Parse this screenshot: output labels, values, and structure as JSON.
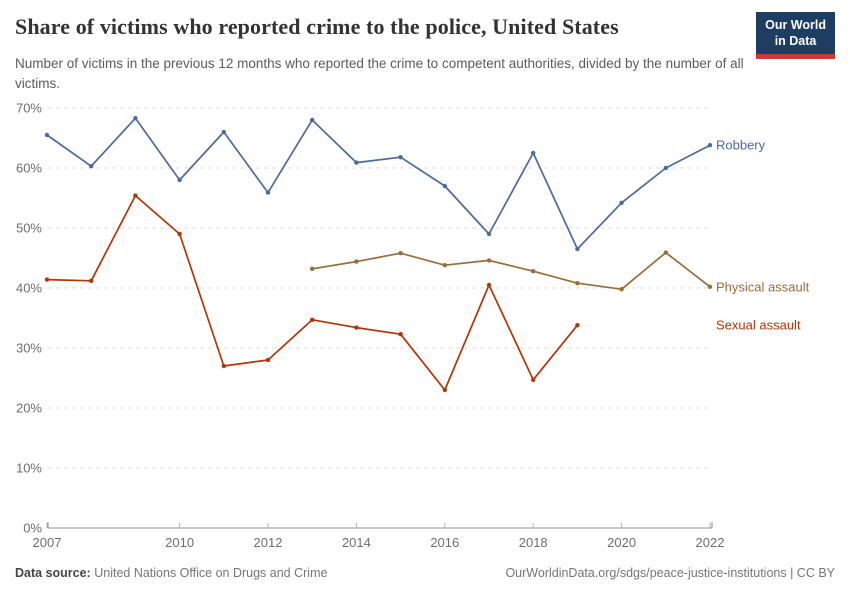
{
  "header": {
    "title": "Share of victims who reported crime to the police, United States",
    "subtitle": "Number of victims in the previous 12 months who reported the crime to competent authorities, divided by the number of all victims.",
    "logo": {
      "line1": "Our World",
      "line2": "in Data",
      "bg_color": "#1d3d63",
      "accent_color": "#cc3b33"
    }
  },
  "chart_data": {
    "type": "line",
    "title": "Share of victims who reported crime to the police, United States",
    "xlabel": "",
    "ylabel": "",
    "ylim": [
      0,
      70
    ],
    "xlim": [
      2007,
      2022
    ],
    "yticks": [
      0,
      10,
      20,
      30,
      40,
      50,
      60,
      70
    ],
    "ytick_suffix": "%",
    "xticks": [
      2007,
      2010,
      2012,
      2014,
      2016,
      2018,
      2020,
      2022
    ],
    "grid": true,
    "legend_position": "right-end-labels",
    "series": [
      {
        "name": "Robbery",
        "color": "#4C6A9C",
        "x": [
          2007,
          2008,
          2009,
          2010,
          2011,
          2012,
          2013,
          2014,
          2015,
          2016,
          2017,
          2018,
          2019,
          2020,
          2021,
          2022
        ],
        "values": [
          65.5,
          60.3,
          68.3,
          58.0,
          66.0,
          55.9,
          68.0,
          60.9,
          61.8,
          57.0,
          49.0,
          62.5,
          46.5,
          54.2,
          60.0,
          63.8
        ]
      },
      {
        "name": "Physical assault",
        "color": "#996D39",
        "x": [
          2013,
          2014,
          2015,
          2016,
          2017,
          2018,
          2019,
          2020,
          2021,
          2022
        ],
        "values": [
          43.2,
          44.4,
          45.8,
          43.8,
          44.6,
          42.8,
          40.8,
          39.8,
          45.9,
          40.2
        ]
      },
      {
        "name": "Sexual assault",
        "color": "#B13507",
        "x": [
          2007,
          2008,
          2009,
          2010,
          2011,
          2012,
          2013,
          2014,
          2015,
          2016,
          2017,
          2018,
          2019
        ],
        "values": [
          41.4,
          41.2,
          55.4,
          49.0,
          27.0,
          28.0,
          34.7,
          33.4,
          32.3,
          23.0,
          40.5,
          24.7,
          33.8
        ]
      }
    ]
  },
  "footer": {
    "source_label": "Data source:",
    "source_text": "United Nations Office on Drugs and Crime",
    "credit": "OurWorldinData.org/sdgs/peace-justice-institutions | CC BY"
  }
}
